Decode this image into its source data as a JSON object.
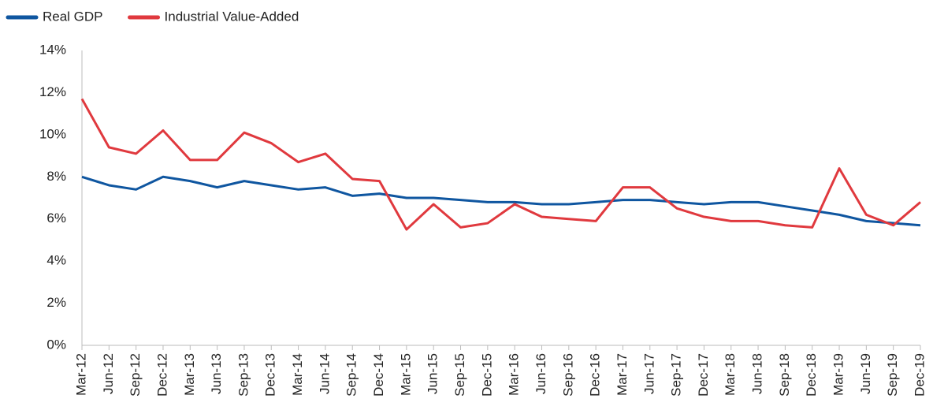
{
  "chart_data": {
    "type": "line",
    "categories": [
      "Mar-12",
      "Jun-12",
      "Sep-12",
      "Dec-12",
      "Mar-13",
      "Jun-13",
      "Sep-13",
      "Dec-13",
      "Mar-14",
      "Jun-14",
      "Sep-14",
      "Dec-14",
      "Mar-15",
      "Jun-15",
      "Sep-15",
      "Dec-15",
      "Mar-16",
      "Jun-16",
      "Sep-16",
      "Dec-16",
      "Mar-17",
      "Jun-17",
      "Sep-17",
      "Dec-17",
      "Mar-18",
      "Jun-18",
      "Sep-18",
      "Dec-18",
      "Mar-19",
      "Jun-19",
      "Sep-19",
      "Dec-19"
    ],
    "series": [
      {
        "name": "Real GDP",
        "color": "#0f56a0",
        "values": [
          8.0,
          7.6,
          7.4,
          8.0,
          7.8,
          7.5,
          7.8,
          7.6,
          7.4,
          7.5,
          7.1,
          7.2,
          7.0,
          7.0,
          6.9,
          6.8,
          6.8,
          6.7,
          6.7,
          6.8,
          6.9,
          6.9,
          6.8,
          6.7,
          6.8,
          6.8,
          6.6,
          6.4,
          6.2,
          5.9,
          5.8,
          5.7
        ]
      },
      {
        "name": "Industrial Value-Added",
        "color": "#e0393e",
        "values": [
          11.7,
          9.4,
          9.1,
          10.2,
          8.8,
          8.8,
          10.1,
          9.6,
          8.7,
          9.1,
          7.9,
          7.8,
          5.5,
          6.7,
          5.6,
          5.8,
          6.7,
          6.1,
          6.0,
          5.9,
          7.5,
          7.5,
          6.5,
          6.1,
          5.9,
          5.9,
          5.7,
          5.6,
          8.4,
          6.2,
          5.7,
          6.8
        ]
      }
    ],
    "ylim": [
      0,
      14
    ],
    "yticks": [
      {
        "value": 0,
        "label": "0%"
      },
      {
        "value": 2,
        "label": "2%"
      },
      {
        "value": 4,
        "label": "4%"
      },
      {
        "value": 6,
        "label": "6%"
      },
      {
        "value": 8,
        "label": "8%"
      },
      {
        "value": 10,
        "label": "10%"
      },
      {
        "value": 12,
        "label": "12%"
      },
      {
        "value": 14,
        "label": "14%"
      }
    ],
    "grid": false,
    "legend": "top-left"
  }
}
